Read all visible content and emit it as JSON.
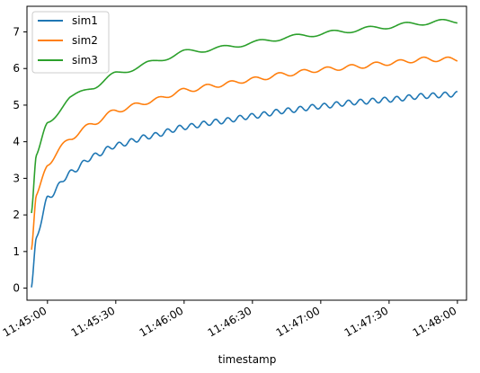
{
  "chart_data": {
    "type": "line",
    "title": "",
    "xlabel": "timestamp",
    "ylabel": "",
    "x_ticks": [
      "11:45:00",
      "11:45:30",
      "11:46:00",
      "11:46:30",
      "11:47:00",
      "11:47:30",
      "11:48:00"
    ],
    "y_ticks": [
      0,
      1,
      2,
      3,
      4,
      5,
      6,
      7
    ],
    "xlim": [
      "11:44:51",
      "11:48:04"
    ],
    "ylim": [
      -0.33,
      7.7
    ],
    "grid": false,
    "legend_position": "top-left",
    "x_range": [
      "11:44:53",
      "11:48:00"
    ],
    "series": [
      {
        "name": "sim1",
        "color": "#1f77b4",
        "x": [
          "11:44:53",
          "11:44:55",
          "11:45:00",
          "11:45:10",
          "11:45:20",
          "11:45:30",
          "11:45:45",
          "11:46:00",
          "11:46:15",
          "11:46:30",
          "11:46:45",
          "11:47:00",
          "11:47:15",
          "11:47:30",
          "11:47:45",
          "11:48:00"
        ],
        "values": [
          0.02,
          1.35,
          2.45,
          3.15,
          3.6,
          3.9,
          4.15,
          4.4,
          4.55,
          4.7,
          4.85,
          4.97,
          5.08,
          5.15,
          5.25,
          5.3
        ]
      },
      {
        "name": "sim2",
        "color": "#ff7f0e",
        "x": [
          "11:44:53",
          "11:44:55",
          "11:45:00",
          "11:45:10",
          "11:45:20",
          "11:45:30",
          "11:45:45",
          "11:46:00",
          "11:46:15",
          "11:46:30",
          "11:46:45",
          "11:47:00",
          "11:47:15",
          "11:47:30",
          "11:47:45",
          "11:48:00"
        ],
        "values": [
          1.05,
          2.5,
          3.4,
          4.1,
          4.5,
          4.85,
          5.1,
          5.4,
          5.55,
          5.7,
          5.85,
          5.97,
          6.05,
          6.15,
          6.25,
          6.25
        ]
      },
      {
        "name": "sim3",
        "color": "#2ca02c",
        "x": [
          "11:44:53",
          "11:44:55",
          "11:45:00",
          "11:45:10",
          "11:45:20",
          "11:45:30",
          "11:45:45",
          "11:46:00",
          "11:46:15",
          "11:46:30",
          "11:46:45",
          "11:47:00",
          "11:47:15",
          "11:47:30",
          "11:47:45",
          "11:48:00"
        ],
        "values": [
          2.05,
          3.6,
          4.5,
          5.2,
          5.5,
          5.85,
          6.15,
          6.45,
          6.55,
          6.7,
          6.85,
          6.95,
          7.05,
          7.15,
          7.25,
          7.3
        ]
      }
    ]
  }
}
